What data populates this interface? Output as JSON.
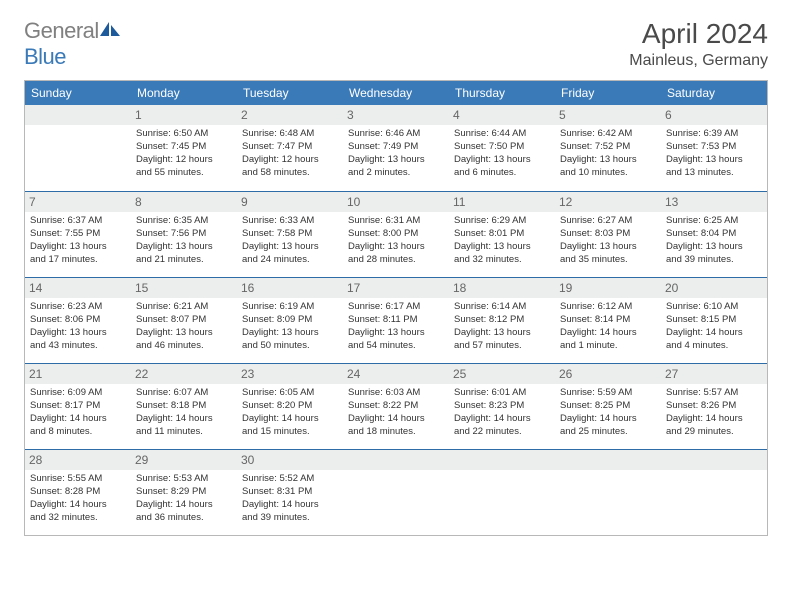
{
  "logo": {
    "text_a": "General",
    "text_b": "Blue"
  },
  "title": "April 2024",
  "location": "Mainleus, Germany",
  "colors": {
    "header_bg": "#3a7ab8",
    "daynum_bg": "#eceded",
    "week_sep": "#2e6ca8",
    "table_border": "#b8b8b8",
    "logo_gray": "#808080",
    "logo_blue": "#3a7ab8"
  },
  "weekdays": [
    "Sunday",
    "Monday",
    "Tuesday",
    "Wednesday",
    "Thursday",
    "Friday",
    "Saturday"
  ],
  "weeks": [
    [
      null,
      {
        "d": "1",
        "r": "Sunrise: 6:50 AM",
        "s": "Sunset: 7:45 PM",
        "l1": "Daylight: 12 hours",
        "l2": "and 55 minutes."
      },
      {
        "d": "2",
        "r": "Sunrise: 6:48 AM",
        "s": "Sunset: 7:47 PM",
        "l1": "Daylight: 12 hours",
        "l2": "and 58 minutes."
      },
      {
        "d": "3",
        "r": "Sunrise: 6:46 AM",
        "s": "Sunset: 7:49 PM",
        "l1": "Daylight: 13 hours",
        "l2": "and 2 minutes."
      },
      {
        "d": "4",
        "r": "Sunrise: 6:44 AM",
        "s": "Sunset: 7:50 PM",
        "l1": "Daylight: 13 hours",
        "l2": "and 6 minutes."
      },
      {
        "d": "5",
        "r": "Sunrise: 6:42 AM",
        "s": "Sunset: 7:52 PM",
        "l1": "Daylight: 13 hours",
        "l2": "and 10 minutes."
      },
      {
        "d": "6",
        "r": "Sunrise: 6:39 AM",
        "s": "Sunset: 7:53 PM",
        "l1": "Daylight: 13 hours",
        "l2": "and 13 minutes."
      }
    ],
    [
      {
        "d": "7",
        "r": "Sunrise: 6:37 AM",
        "s": "Sunset: 7:55 PM",
        "l1": "Daylight: 13 hours",
        "l2": "and 17 minutes."
      },
      {
        "d": "8",
        "r": "Sunrise: 6:35 AM",
        "s": "Sunset: 7:56 PM",
        "l1": "Daylight: 13 hours",
        "l2": "and 21 minutes."
      },
      {
        "d": "9",
        "r": "Sunrise: 6:33 AM",
        "s": "Sunset: 7:58 PM",
        "l1": "Daylight: 13 hours",
        "l2": "and 24 minutes."
      },
      {
        "d": "10",
        "r": "Sunrise: 6:31 AM",
        "s": "Sunset: 8:00 PM",
        "l1": "Daylight: 13 hours",
        "l2": "and 28 minutes."
      },
      {
        "d": "11",
        "r": "Sunrise: 6:29 AM",
        "s": "Sunset: 8:01 PM",
        "l1": "Daylight: 13 hours",
        "l2": "and 32 minutes."
      },
      {
        "d": "12",
        "r": "Sunrise: 6:27 AM",
        "s": "Sunset: 8:03 PM",
        "l1": "Daylight: 13 hours",
        "l2": "and 35 minutes."
      },
      {
        "d": "13",
        "r": "Sunrise: 6:25 AM",
        "s": "Sunset: 8:04 PM",
        "l1": "Daylight: 13 hours",
        "l2": "and 39 minutes."
      }
    ],
    [
      {
        "d": "14",
        "r": "Sunrise: 6:23 AM",
        "s": "Sunset: 8:06 PM",
        "l1": "Daylight: 13 hours",
        "l2": "and 43 minutes."
      },
      {
        "d": "15",
        "r": "Sunrise: 6:21 AM",
        "s": "Sunset: 8:07 PM",
        "l1": "Daylight: 13 hours",
        "l2": "and 46 minutes."
      },
      {
        "d": "16",
        "r": "Sunrise: 6:19 AM",
        "s": "Sunset: 8:09 PM",
        "l1": "Daylight: 13 hours",
        "l2": "and 50 minutes."
      },
      {
        "d": "17",
        "r": "Sunrise: 6:17 AM",
        "s": "Sunset: 8:11 PM",
        "l1": "Daylight: 13 hours",
        "l2": "and 54 minutes."
      },
      {
        "d": "18",
        "r": "Sunrise: 6:14 AM",
        "s": "Sunset: 8:12 PM",
        "l1": "Daylight: 13 hours",
        "l2": "and 57 minutes."
      },
      {
        "d": "19",
        "r": "Sunrise: 6:12 AM",
        "s": "Sunset: 8:14 PM",
        "l1": "Daylight: 14 hours",
        "l2": "and 1 minute."
      },
      {
        "d": "20",
        "r": "Sunrise: 6:10 AM",
        "s": "Sunset: 8:15 PM",
        "l1": "Daylight: 14 hours",
        "l2": "and 4 minutes."
      }
    ],
    [
      {
        "d": "21",
        "r": "Sunrise: 6:09 AM",
        "s": "Sunset: 8:17 PM",
        "l1": "Daylight: 14 hours",
        "l2": "and 8 minutes."
      },
      {
        "d": "22",
        "r": "Sunrise: 6:07 AM",
        "s": "Sunset: 8:18 PM",
        "l1": "Daylight: 14 hours",
        "l2": "and 11 minutes."
      },
      {
        "d": "23",
        "r": "Sunrise: 6:05 AM",
        "s": "Sunset: 8:20 PM",
        "l1": "Daylight: 14 hours",
        "l2": "and 15 minutes."
      },
      {
        "d": "24",
        "r": "Sunrise: 6:03 AM",
        "s": "Sunset: 8:22 PM",
        "l1": "Daylight: 14 hours",
        "l2": "and 18 minutes."
      },
      {
        "d": "25",
        "r": "Sunrise: 6:01 AM",
        "s": "Sunset: 8:23 PM",
        "l1": "Daylight: 14 hours",
        "l2": "and 22 minutes."
      },
      {
        "d": "26",
        "r": "Sunrise: 5:59 AM",
        "s": "Sunset: 8:25 PM",
        "l1": "Daylight: 14 hours",
        "l2": "and 25 minutes."
      },
      {
        "d": "27",
        "r": "Sunrise: 5:57 AM",
        "s": "Sunset: 8:26 PM",
        "l1": "Daylight: 14 hours",
        "l2": "and 29 minutes."
      }
    ],
    [
      {
        "d": "28",
        "r": "Sunrise: 5:55 AM",
        "s": "Sunset: 8:28 PM",
        "l1": "Daylight: 14 hours",
        "l2": "and 32 minutes."
      },
      {
        "d": "29",
        "r": "Sunrise: 5:53 AM",
        "s": "Sunset: 8:29 PM",
        "l1": "Daylight: 14 hours",
        "l2": "and 36 minutes."
      },
      {
        "d": "30",
        "r": "Sunrise: 5:52 AM",
        "s": "Sunset: 8:31 PM",
        "l1": "Daylight: 14 hours",
        "l2": "and 39 minutes."
      },
      null,
      null,
      null,
      null
    ]
  ]
}
